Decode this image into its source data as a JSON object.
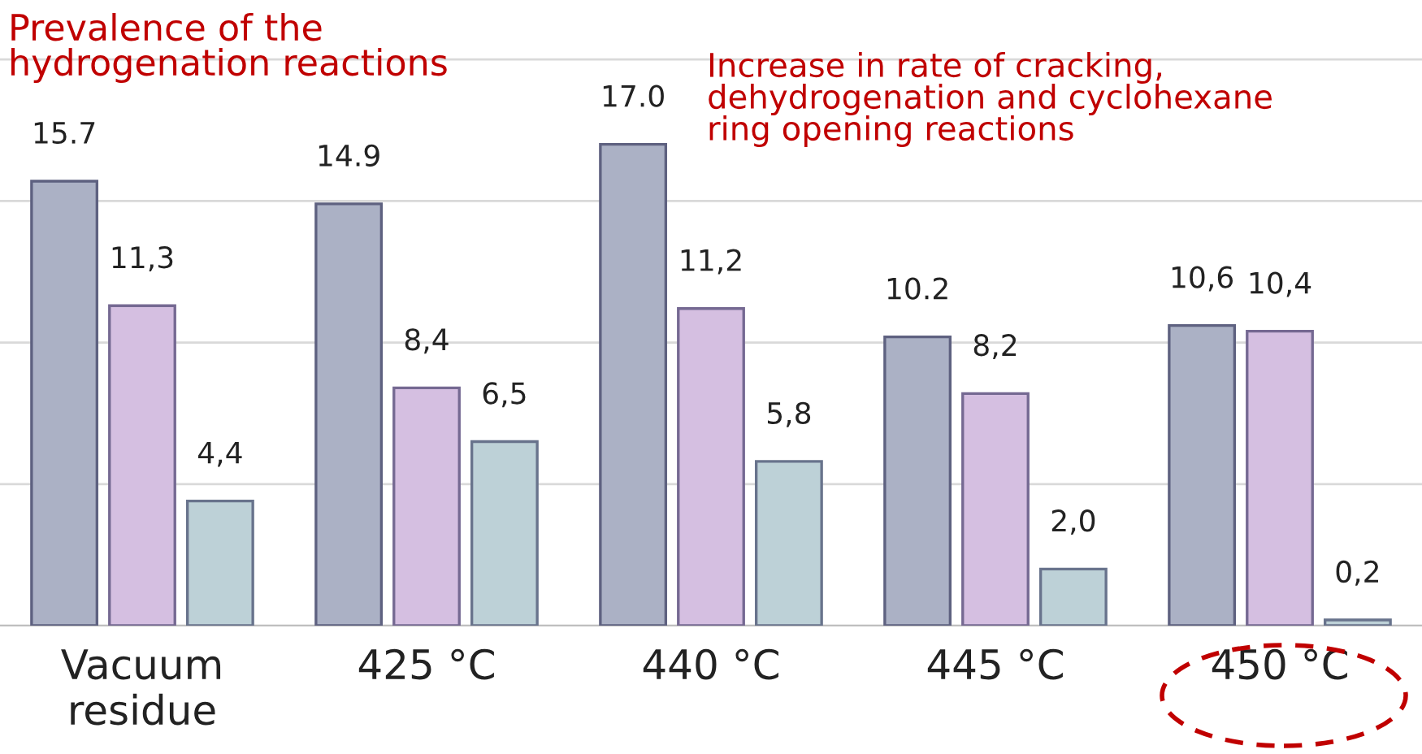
{
  "chart_data": {
    "type": "bar",
    "categories": [
      "Vacuum\nresidue",
      "425 °C",
      "440 °C",
      "445 °C",
      "450 °C"
    ],
    "series": [
      {
        "color": "#abb1c5",
        "values": [
          15.7,
          14.9,
          17.0,
          10.2,
          10.6
        ],
        "value_labels": [
          "15.7",
          "14.9",
          "17.0",
          "10.2",
          "10,6"
        ]
      },
      {
        "color": "#d5bfe1",
        "values": [
          11.3,
          8.4,
          11.2,
          8.2,
          10.4
        ],
        "value_labels": [
          "11,3",
          "8,4",
          "11,2",
          "8,2",
          "10,4"
        ]
      },
      {
        "color": "#bdd1d7",
        "values": [
          4.4,
          6.5,
          5.8,
          2.0,
          0.2
        ],
        "value_labels": [
          "4,4",
          "6,5",
          "5,8",
          "2,0",
          "0,2"
        ]
      }
    ],
    "yticks": [
      {
        "value": 0,
        "label": null
      },
      {
        "value": 5,
        "label": null
      },
      {
        "value": 10,
        "label": null
      },
      {
        "value": 15,
        "label": null
      },
      {
        "value": 20,
        "label": null
      }
    ],
    "grid": "y",
    "tick_labels": "x",
    "annotations": [
      "Prevalence of the\nhydrogenation reactions",
      "Increase in rate of cracking,\ndehydrogenation and cyclohexane\nring opening reactions"
    ]
  }
}
